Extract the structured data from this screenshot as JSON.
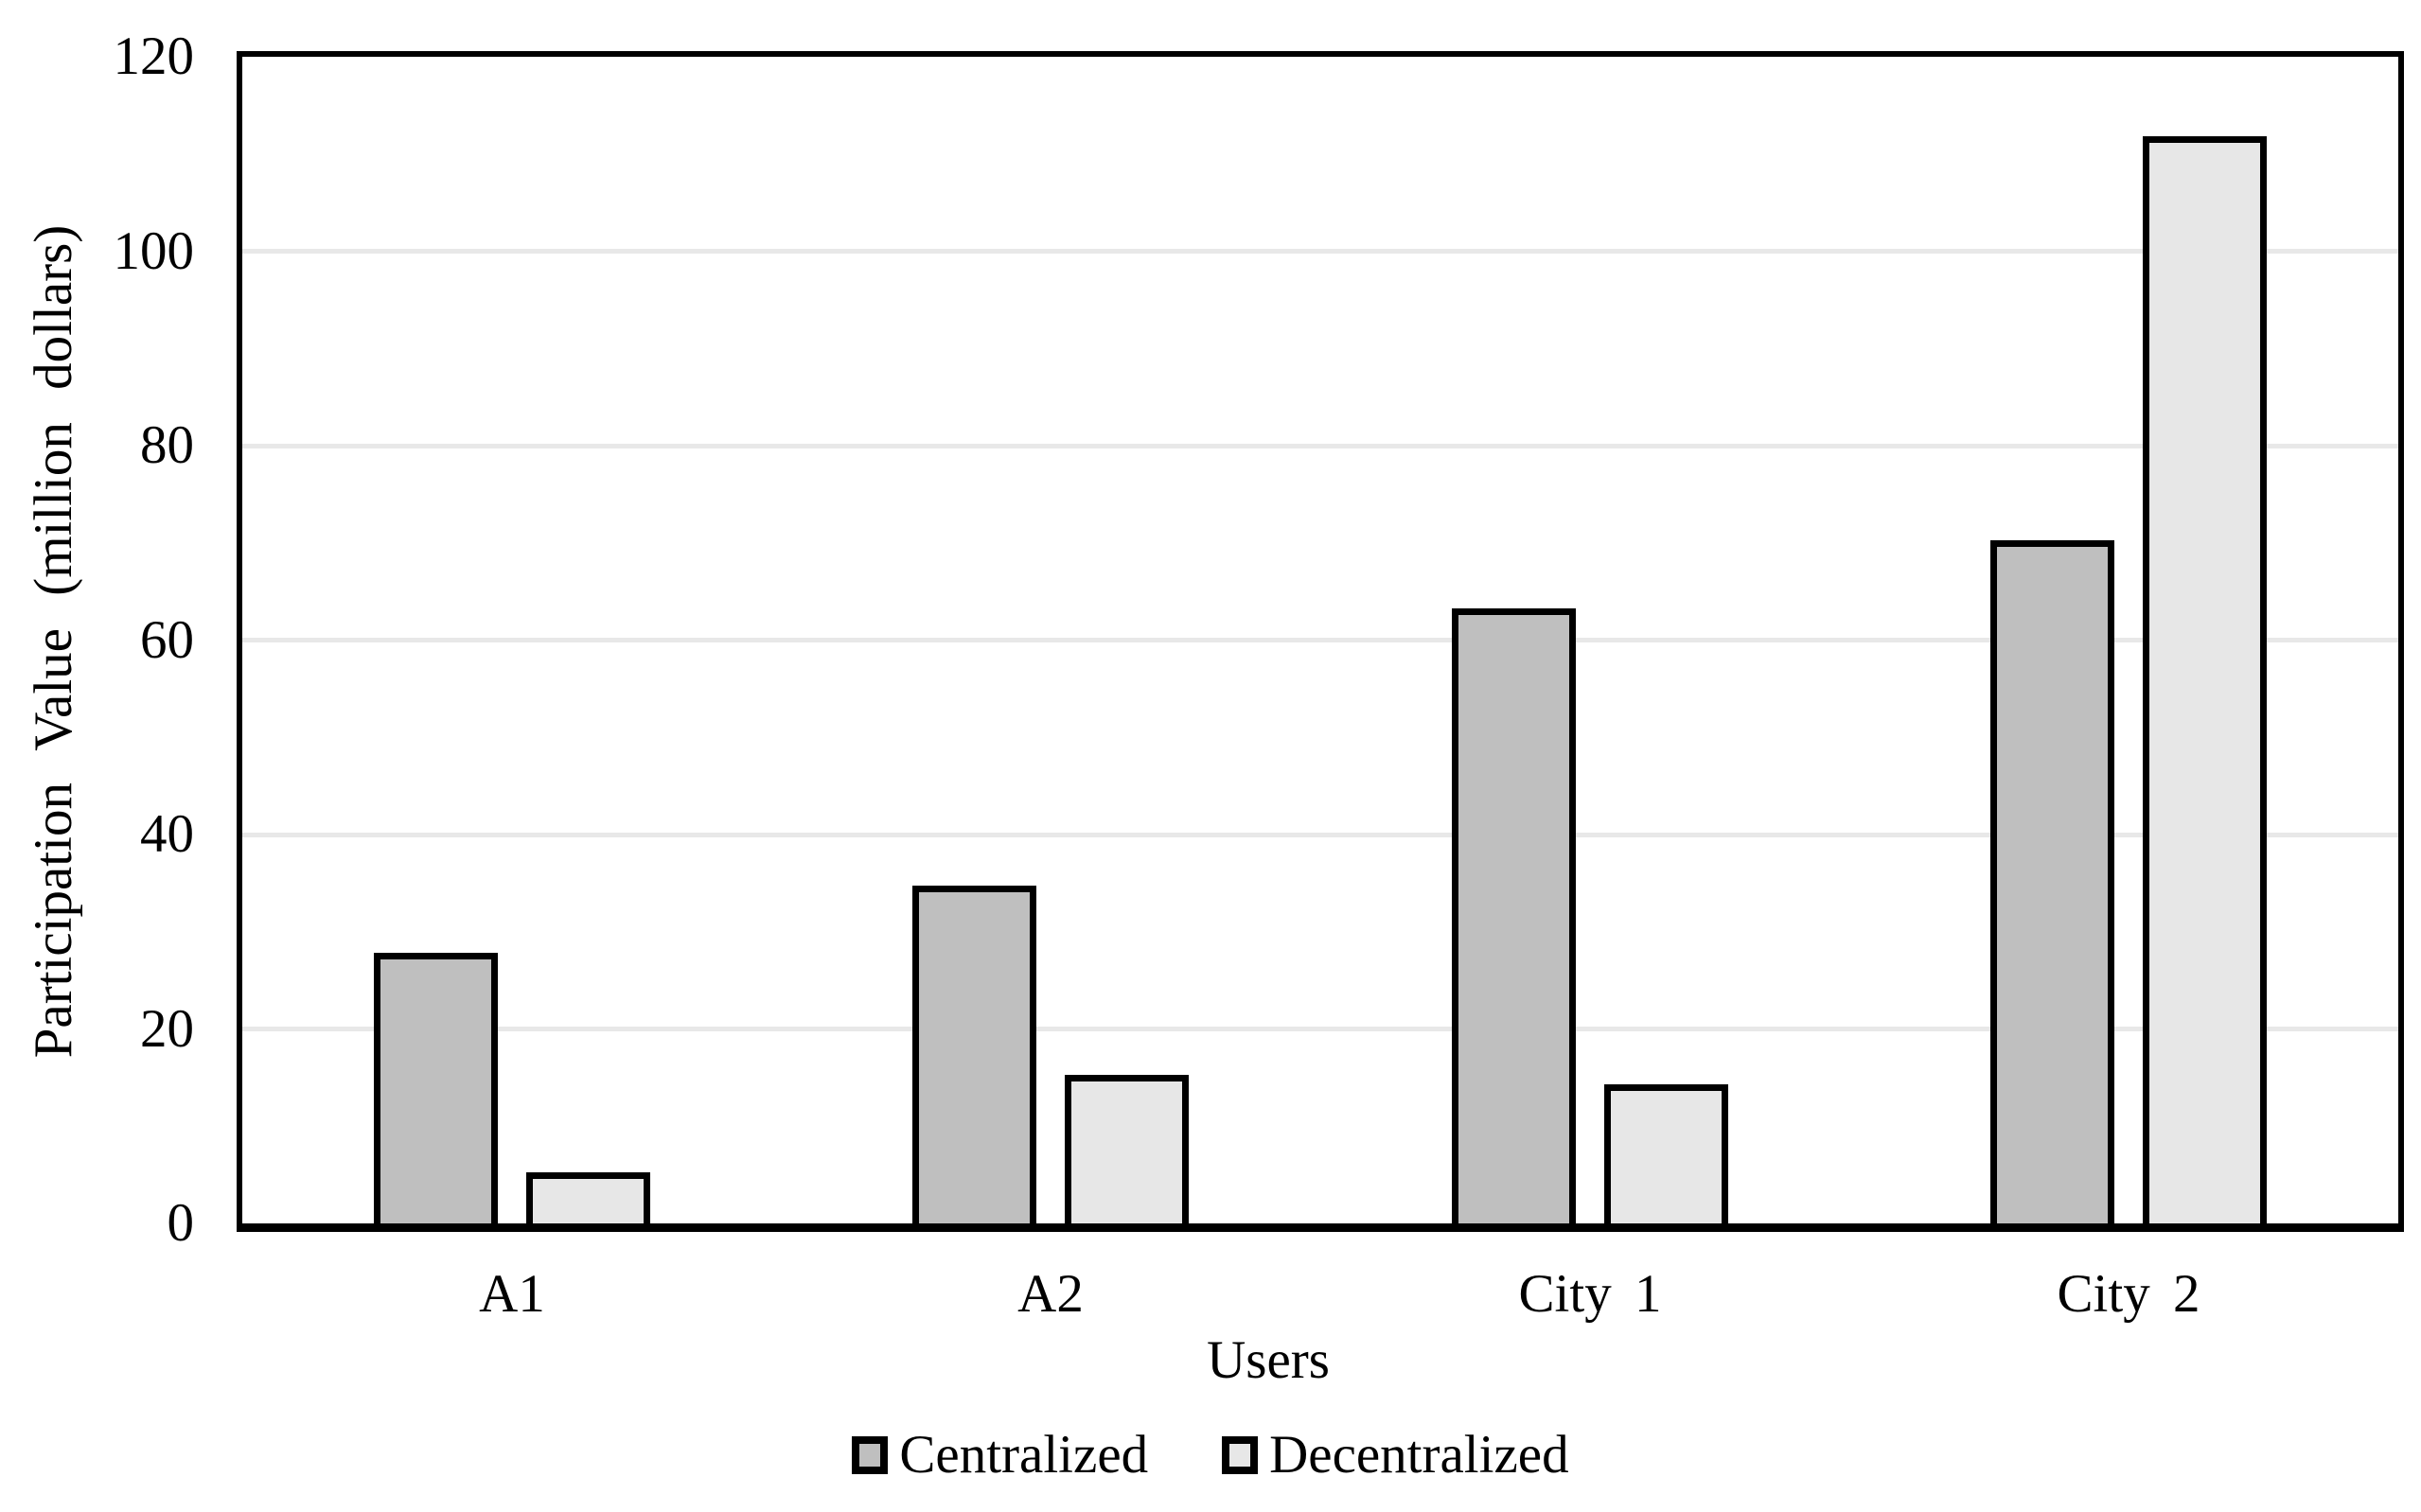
{
  "chart_data": {
    "type": "bar",
    "title": "",
    "categories": [
      "A1",
      "A2",
      "City 1",
      "City 2"
    ],
    "series": [
      {
        "name": "Centralized",
        "color": "#bfbfbf",
        "values": [
          27.5,
          34.5,
          63,
          70
        ]
      },
      {
        "name": "Decentralized",
        "color": "#e7e7e7",
        "values": [
          5,
          15,
          14,
          111.5
        ]
      }
    ],
    "xlabel": "Users",
    "ylabel": "Participation Value (million dollars)",
    "ylim": [
      0,
      120
    ],
    "ytick_step": 20,
    "yticks": [
      "0",
      "20",
      "40",
      "60",
      "80",
      "100",
      "120"
    ],
    "grid": "horizontal",
    "gridline_color": "#e8e8e8",
    "bar_border_color": "#000000",
    "axis_color": "#000000",
    "legend_position": "bottom"
  }
}
